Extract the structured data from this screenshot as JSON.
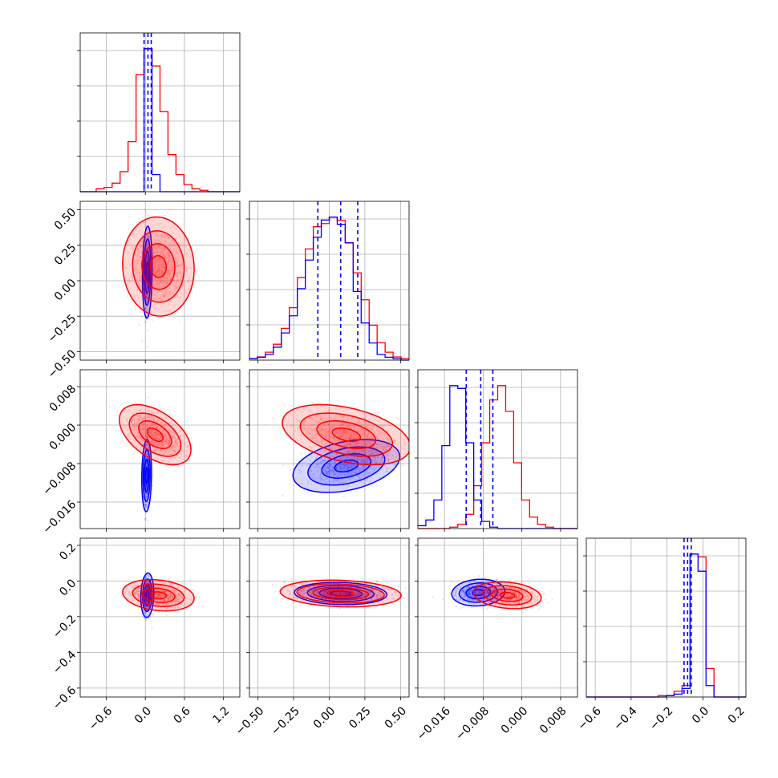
{
  "chart_data": {
    "type": "corner",
    "title": "",
    "grid": true,
    "series": [
      {
        "name": "",
        "color": "#ff0000",
        "quantiles": [
          [
            null,
            null,
            null
          ],
          [
            null,
            null,
            null
          ],
          [
            null,
            null,
            null
          ],
          [
            null,
            null,
            null
          ]
        ]
      },
      {
        "name": "",
        "color": "#0000ff",
        "quantiles": [
          [
            -0.02,
            0.04,
            0.09
          ],
          [
            -0.08,
            0.08,
            0.2
          ],
          [
            -0.0115,
            -0.0085,
            -0.006
          ],
          [
            -0.105,
            -0.085,
            -0.065
          ]
        ]
      }
    ],
    "parameters": [
      {
        "range": [
          -1.0,
          1.45
        ],
        "ticks": [
          -0.6,
          0.0,
          0.6,
          1.2
        ],
        "tick_labels": [
          "−0.6",
          "0.0",
          "0.6",
          "1.2"
        ]
      },
      {
        "range": [
          -0.56,
          0.56
        ],
        "ticks": [
          -0.5,
          -0.25,
          0.0,
          0.25,
          0.5
        ],
        "tick_labels": [
          "−0.50",
          "−0.25",
          "0.00",
          "0.25",
          "0.50"
        ]
      },
      {
        "range": [
          -0.0215,
          0.0115
        ],
        "ticks": [
          -0.016,
          -0.008,
          0.0,
          0.008
        ],
        "tick_labels": [
          "−0.016",
          "−0.008",
          "0.000",
          "0.008"
        ]
      },
      {
        "range": [
          -0.65,
          0.24
        ],
        "ticks": [
          -0.6,
          -0.4,
          -0.2,
          0.0,
          0.2
        ],
        "tick_labels": [
          "−0.6",
          "−0.4",
          "−0.2",
          "0.0",
          "0.2"
        ]
      }
    ],
    "histograms": [
      {
        "bins": [
          -1.0,
          1.45,
          20
        ],
        "red": [
          0,
          0,
          2,
          3,
          6,
          14,
          35,
          82,
          100,
          88,
          56,
          26,
          12,
          5,
          2,
          1,
          0,
          0,
          0,
          0
        ],
        "blue": [
          0,
          0,
          0,
          0,
          0,
          0,
          0,
          0,
          100,
          12,
          0,
          0,
          0,
          0,
          0,
          0,
          0,
          0,
          0,
          0
        ]
      },
      {
        "bins": [
          -0.56,
          0.56,
          20
        ],
        "red": [
          1,
          2,
          5,
          10,
          20,
          33,
          52,
          70,
          84,
          86,
          90,
          88,
          74,
          55,
          38,
          22,
          11,
          5,
          2,
          1
        ],
        "blue": [
          1,
          2,
          4,
          9,
          19,
          31,
          50,
          70,
          86,
          98,
          100,
          95,
          82,
          48,
          26,
          12,
          4,
          2,
          1,
          0
        ]
      },
      {
        "bins": [
          -0.0215,
          0.0115,
          20
        ],
        "red": [
          0,
          0,
          0,
          0,
          1,
          3,
          10,
          30,
          60,
          90,
          100,
          82,
          46,
          20,
          8,
          3,
          1,
          0,
          0,
          0
        ],
        "blue": [
          2,
          6,
          20,
          58,
          100,
          98,
          60,
          20,
          5,
          1,
          0,
          0,
          0,
          0,
          0,
          0,
          0,
          0,
          0,
          0
        ]
      },
      {
        "bins": [
          -0.65,
          0.24,
          20
        ],
        "red": [
          0,
          0,
          0,
          0,
          0,
          0,
          0,
          0,
          0,
          1,
          1,
          4,
          8,
          100,
          98,
          20,
          0,
          0,
          0,
          0
        ],
        "blue": [
          0,
          0,
          0,
          0,
          0,
          0,
          0,
          0,
          0,
          0,
          1,
          2,
          6,
          100,
          88,
          8,
          0,
          0,
          0,
          0
        ]
      }
    ],
    "pairs": [
      {
        "row": 1,
        "col": 0,
        "red": {
          "mean": [
            0.2,
            0.1
          ],
          "sd": [
            0.22,
            0.14
          ],
          "rho": -0.05
        },
        "blue": {
          "mean": [
            0.03,
            0.06
          ],
          "sd": [
            0.03,
            0.13
          ],
          "rho": 0.1
        }
      },
      {
        "row": 2,
        "col": 0,
        "red": {
          "mean": [
            0.15,
            -0.002
          ],
          "sd": [
            0.22,
            0.0025
          ],
          "rho": -0.5
        },
        "blue": {
          "mean": [
            0.02,
            -0.0105
          ],
          "sd": [
            0.03,
            0.003
          ],
          "rho": 0.1
        }
      },
      {
        "row": 2,
        "col": 1,
        "red": {
          "mean": [
            0.12,
            -0.002
          ],
          "sd": [
            0.18,
            0.0025
          ],
          "rho": -0.4
        },
        "blue": {
          "mean": [
            0.12,
            -0.0085
          ],
          "sd": [
            0.15,
            0.0022
          ],
          "rho": 0.35
        }
      },
      {
        "row": 3,
        "col": 0,
        "red": {
          "mean": [
            0.2,
            -0.08
          ],
          "sd": [
            0.22,
            0.035
          ],
          "rho": -0.2
        },
        "blue": {
          "mean": [
            0.03,
            -0.08
          ],
          "sd": [
            0.04,
            0.05
          ],
          "rho": 0.1
        }
      },
      {
        "row": 3,
        "col": 1,
        "red": {
          "mean": [
            0.08,
            -0.07
          ],
          "sd": [
            0.17,
            0.03
          ],
          "rho": -0.15
        },
        "blue": {
          "mean": [
            0.08,
            -0.07
          ],
          "sd": [
            0.13,
            0.025
          ],
          "rho": -0.1
        }
      },
      {
        "row": 3,
        "col": 2,
        "red": {
          "mean": [
            -0.003,
            -0.08
          ],
          "sd": [
            0.0028,
            0.03
          ],
          "rho": -0.2
        },
        "blue": {
          "mean": [
            -0.009,
            -0.065
          ],
          "sd": [
            0.0022,
            0.03
          ],
          "rho": 0.1
        }
      }
    ]
  }
}
